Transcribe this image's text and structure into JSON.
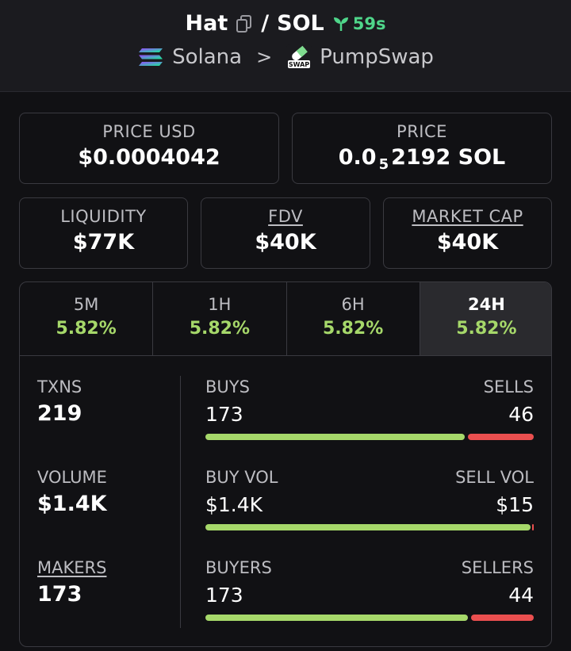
{
  "header": {
    "token": "Hat",
    "separator": "/",
    "quote": "SOL",
    "age": "59s",
    "chain": "Solana",
    "chevron": ">",
    "dex": "PumpSwap",
    "dex_badge": "SWAP"
  },
  "price_usd": {
    "label": "PRICE USD",
    "value": "$0.0004042"
  },
  "price": {
    "label": "PRICE",
    "prefix": "0.0",
    "zeros": "5",
    "digits": "2192",
    "unit": "SOL"
  },
  "liquidity": {
    "label": "LIQUIDITY",
    "value": "$77K"
  },
  "fdv": {
    "label": "FDV",
    "value": "$40K"
  },
  "market_cap": {
    "label": "MARKET CAP",
    "value": "$40K"
  },
  "tabs": [
    {
      "label": "5M",
      "value": "5.82%"
    },
    {
      "label": "1H",
      "value": "5.82%"
    },
    {
      "label": "6H",
      "value": "5.82%"
    },
    {
      "label": "24H",
      "value": "5.82%"
    }
  ],
  "stats": {
    "txns": {
      "label": "TXNS",
      "value": "219"
    },
    "volume": {
      "label": "VOLUME",
      "value": "$1.4K"
    },
    "makers": {
      "label": "MAKERS",
      "value": "173"
    }
  },
  "splits": {
    "buys_sells": {
      "left_label": "BUYS",
      "left_value": "173",
      "right_label": "SELLS",
      "right_value": "46",
      "left_fraction": 0.79
    },
    "vol": {
      "left_label": "BUY VOL",
      "left_value": "$1.4K",
      "right_label": "SELL VOL",
      "right_value": "$15",
      "left_fraction": 0.99
    },
    "buyers_sellers": {
      "left_label": "BUYERS",
      "left_value": "173",
      "right_label": "SELLERS",
      "right_value": "44",
      "left_fraction": 0.8
    }
  },
  "colors": {
    "up": "#a6d86a",
    "down": "#ea4f4f",
    "age": "#4fd68a"
  }
}
